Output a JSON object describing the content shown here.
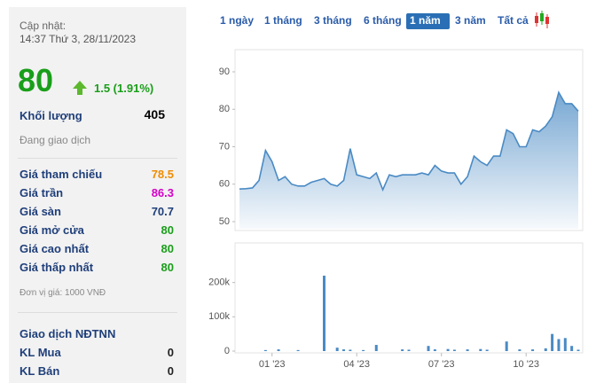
{
  "panel": {
    "updated_label": "Cập nhật:",
    "updated_time": "14:37 Thứ 3, 28/11/2023",
    "price": 80,
    "change": "1.5 (1.91%)",
    "volume_label": "Khối lượng",
    "volume": 405,
    "status": "Đang giao dịch",
    "rows": [
      {
        "label": "Giá tham chiếu",
        "value": 78.5,
        "color": "#f08c00"
      },
      {
        "label": "Giá trần",
        "value": 86.3,
        "color": "#d400c8"
      },
      {
        "label": "Giá sàn",
        "value": 70.7,
        "color": "#1f3f7a"
      },
      {
        "label": "Giá mở cửa",
        "value": 80,
        "color": "#1a9e1a"
      },
      {
        "label": "Giá cao nhất",
        "value": 80,
        "color": "#1a9e1a"
      },
      {
        "label": "Giá thấp nhất",
        "value": 80,
        "color": "#1a9e1a"
      }
    ],
    "unit_note": "Đơn vị giá: 1000 VNĐ",
    "foreign": {
      "title": "Giao dịch NĐTNN",
      "rows": [
        {
          "label": "KL Mua",
          "value": 0
        },
        {
          "label": "KL Bán",
          "value": 0
        }
      ]
    }
  },
  "tabs": {
    "items": [
      "1 ngày",
      "1 tháng",
      "3 tháng",
      "6 tháng",
      "1 năm",
      "3 năm",
      "Tất cả"
    ],
    "active": 4
  },
  "chart_data": [
    {
      "type": "area",
      "color": "#4a8ac4",
      "ylim": [
        48.1,
        94.5
      ],
      "yticks": [
        50,
        60,
        70,
        80,
        90
      ],
      "values": [
        58.7,
        58.8,
        59,
        61,
        69,
        66,
        61,
        62,
        60,
        59.5,
        59.5,
        60.5,
        61,
        61.5,
        60,
        59.5,
        61,
        69.5,
        62.5,
        62,
        61.5,
        63,
        58.5,
        62.5,
        62,
        62.5,
        62.5,
        62.5,
        63,
        62.5,
        65,
        63.5,
        63,
        63,
        60,
        62,
        67.5,
        66,
        65,
        67.5,
        67.5,
        74.5,
        73.5,
        70,
        70,
        74.5,
        74,
        75.5,
        78,
        84.5,
        81.5,
        81.5,
        79.5
      ]
    },
    {
      "type": "bar",
      "color": "#4a8ac4",
      "ylim": [
        0,
        300000
      ],
      "yticks": [
        0,
        {
          "value": 100000,
          "label": "100k"
        },
        {
          "value": 200000,
          "label": "200k"
        }
      ],
      "categories": [
        null,
        null,
        null,
        null,
        null,
        "01 '23",
        null,
        null,
        null,
        null,
        null,
        null,
        null,
        null,
        null,
        null,
        null,
        null,
        "04 '23",
        null,
        null,
        null,
        null,
        null,
        null,
        null,
        null,
        null,
        null,
        null,
        null,
        "07 '23",
        null,
        null,
        null,
        null,
        null,
        null,
        null,
        null,
        null,
        null,
        null,
        null,
        "10 '23",
        null,
        null,
        null,
        null,
        null,
        null,
        null,
        null
      ],
      "values": [
        0,
        0,
        0,
        0,
        3000,
        0,
        5000,
        0,
        0,
        3000,
        0,
        0,
        0,
        220000,
        0,
        10000,
        5000,
        4000,
        0,
        3000,
        0,
        18000,
        0,
        0,
        0,
        5000,
        4000,
        0,
        0,
        15000,
        5000,
        0,
        6000,
        4000,
        0,
        5000,
        0,
        6000,
        4000,
        0,
        0,
        28000,
        0,
        5000,
        0,
        5000,
        0,
        8000,
        50000,
        35000,
        38000,
        15000,
        4000
      ]
    }
  ]
}
